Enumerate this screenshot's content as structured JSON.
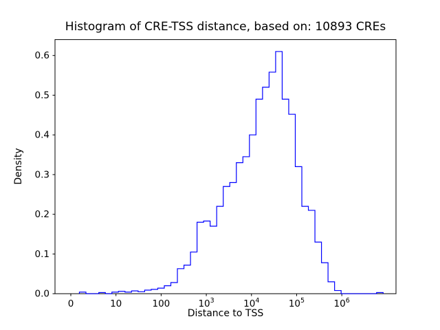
{
  "chart_data": {
    "type": "bar",
    "subtype": "step-histogram",
    "title": "Histogram of CRE-TSS distance, based on: 10893 CREs",
    "xlabel": "Distance to TSS",
    "ylabel": "Density",
    "cre_count": "10893",
    "line_color": "#0000ff",
    "axis_color": "#000000",
    "x_scale": "log10",
    "xlim_log10": [
      -0.35,
      7.2
    ],
    "ylim": [
      0,
      0.64
    ],
    "grid": false,
    "legend": "none",
    "x_ticks": [
      {
        "u": 0,
        "label": "0"
      },
      {
        "u": 1,
        "label": "10"
      },
      {
        "u": 2,
        "label": "100"
      },
      {
        "u": 3,
        "label": "10^3"
      },
      {
        "u": 4,
        "label": "10^4"
      },
      {
        "u": 5,
        "label": "10^5"
      },
      {
        "u": 6,
        "label": "10^6"
      }
    ],
    "y_ticks": [
      0.0,
      0.1,
      0.2,
      0.3,
      0.4,
      0.5,
      0.6
    ],
    "bins_log10_edges_and_density": [
      [
        0.19,
        0.335,
        0.004
      ],
      [
        0.62,
        0.765,
        0.003
      ],
      [
        0.91,
        1.055,
        0.004
      ],
      [
        1.055,
        1.2,
        0.006
      ],
      [
        1.2,
        1.345,
        0.004
      ],
      [
        1.345,
        1.49,
        0.007
      ],
      [
        1.49,
        1.635,
        0.005
      ],
      [
        1.635,
        1.78,
        0.009
      ],
      [
        1.78,
        1.925,
        0.011
      ],
      [
        1.925,
        2.07,
        0.014
      ],
      [
        2.07,
        2.215,
        0.02
      ],
      [
        2.215,
        2.36,
        0.028
      ],
      [
        2.36,
        2.505,
        0.063
      ],
      [
        2.505,
        2.65,
        0.072
      ],
      [
        2.65,
        2.795,
        0.105
      ],
      [
        2.795,
        2.94,
        0.18
      ],
      [
        2.94,
        3.085,
        0.183
      ],
      [
        3.085,
        3.23,
        0.17
      ],
      [
        3.23,
        3.375,
        0.22
      ],
      [
        3.375,
        3.52,
        0.27
      ],
      [
        3.52,
        3.665,
        0.28
      ],
      [
        3.665,
        3.81,
        0.33
      ],
      [
        3.81,
        3.955,
        0.345
      ],
      [
        3.955,
        4.1,
        0.4
      ],
      [
        4.1,
        4.245,
        0.49
      ],
      [
        4.245,
        4.39,
        0.52
      ],
      [
        4.39,
        4.535,
        0.558
      ],
      [
        4.535,
        4.68,
        0.61
      ],
      [
        4.68,
        4.825,
        0.49
      ],
      [
        4.825,
        4.97,
        0.452
      ],
      [
        4.97,
        5.115,
        0.32
      ],
      [
        5.115,
        5.26,
        0.22
      ],
      [
        5.26,
        5.405,
        0.21
      ],
      [
        5.405,
        5.55,
        0.13
      ],
      [
        5.55,
        5.695,
        0.078
      ],
      [
        5.695,
        5.84,
        0.03
      ],
      [
        5.84,
        5.985,
        0.008
      ],
      [
        6.77,
        6.915,
        0.003
      ]
    ]
  }
}
